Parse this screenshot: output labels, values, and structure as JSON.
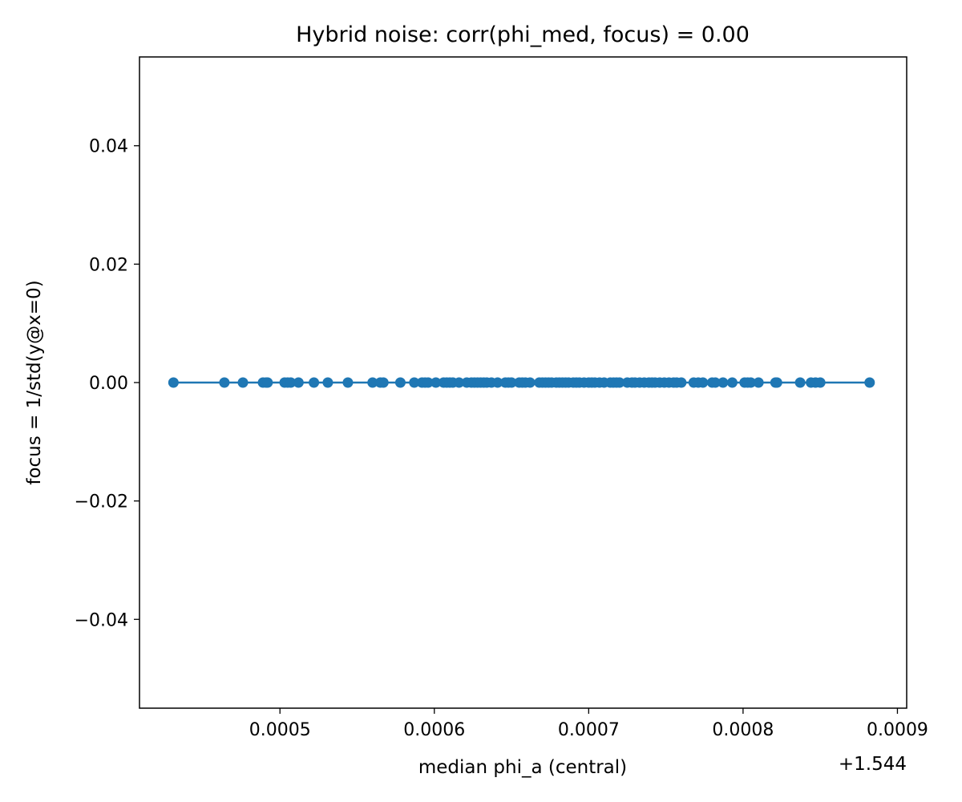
{
  "chart_data": {
    "type": "line",
    "title": "Hybrid noise: corr(phi_med, focus) = 0.00",
    "xlabel": "median phi_a (central)",
    "ylabel": "focus = 1/std(y@x=0)",
    "x_offset_label": "+1.544",
    "xlim": [
      0.000409,
      0.000906
    ],
    "ylim": [
      -0.055,
      0.055
    ],
    "x_ticks": [
      0.0005,
      0.0006,
      0.0007,
      0.0008,
      0.0009
    ],
    "x_tick_labels": [
      "0.0005",
      "0.0006",
      "0.0007",
      "0.0008",
      "0.0009"
    ],
    "y_ticks": [
      0.04,
      0.02,
      0.0,
      -0.02,
      -0.04
    ],
    "y_tick_labels": [
      "0.04",
      "0.02",
      "0.00",
      "−0.02",
      "−0.04"
    ],
    "grid": false,
    "color": "#1f77b4",
    "series": [
      {
        "x": [
          0.000431,
          0.000464,
          0.000476,
          0.000489,
          0.000491,
          0.000492,
          0.000503,
          0.000505,
          0.000507,
          0.000512,
          0.000522,
          0.000531,
          0.000544,
          0.00056,
          0.000565,
          0.000567,
          0.000578,
          0.000587,
          0.000592,
          0.000594,
          0.000596,
          0.000601,
          0.000606,
          0.000608,
          0.00061,
          0.000612,
          0.000616,
          0.000621,
          0.000624,
          0.000626,
          0.000628,
          0.00063,
          0.000632,
          0.000634,
          0.000637,
          0.000641,
          0.000646,
          0.000648,
          0.00065,
          0.000655,
          0.000657,
          0.000659,
          0.000662,
          0.000668,
          0.00067,
          0.000672,
          0.000674,
          0.000676,
          0.000679,
          0.000681,
          0.000683,
          0.000685,
          0.000687,
          0.00069,
          0.000692,
          0.000694,
          0.000697,
          0.0007,
          0.000702,
          0.000704,
          0.000707,
          0.00071,
          0.000714,
          0.000716,
          0.000718,
          0.00072,
          0.000725,
          0.000728,
          0.00073,
          0.000733,
          0.000736,
          0.000739,
          0.000741,
          0.000743,
          0.000746,
          0.000749,
          0.000752,
          0.000755,
          0.000757,
          0.00076,
          0.000768,
          0.000771,
          0.000774,
          0.00078,
          0.000782,
          0.000787,
          0.000793,
          0.000801,
          0.000803,
          0.000805,
          0.00081,
          0.000821,
          0.000822,
          0.000837,
          0.000844,
          0.000847,
          0.00085,
          0.000882
        ],
        "y": [
          0,
          0,
          0,
          0,
          0,
          0,
          0,
          0,
          0,
          0,
          0,
          0,
          0,
          0,
          0,
          0,
          0,
          0,
          0,
          0,
          0,
          0,
          0,
          0,
          0,
          0,
          0,
          0,
          0,
          0,
          0,
          0,
          0,
          0,
          0,
          0,
          0,
          0,
          0,
          0,
          0,
          0,
          0,
          0,
          0,
          0,
          0,
          0,
          0,
          0,
          0,
          0,
          0,
          0,
          0,
          0,
          0,
          0,
          0,
          0,
          0,
          0,
          0,
          0,
          0,
          0,
          0,
          0,
          0,
          0,
          0,
          0,
          0,
          0,
          0,
          0,
          0,
          0,
          0,
          0,
          0,
          0,
          0,
          0,
          0,
          0,
          0,
          0,
          0,
          0,
          0,
          0,
          0,
          0,
          0,
          0,
          0,
          0
        ]
      }
    ]
  }
}
